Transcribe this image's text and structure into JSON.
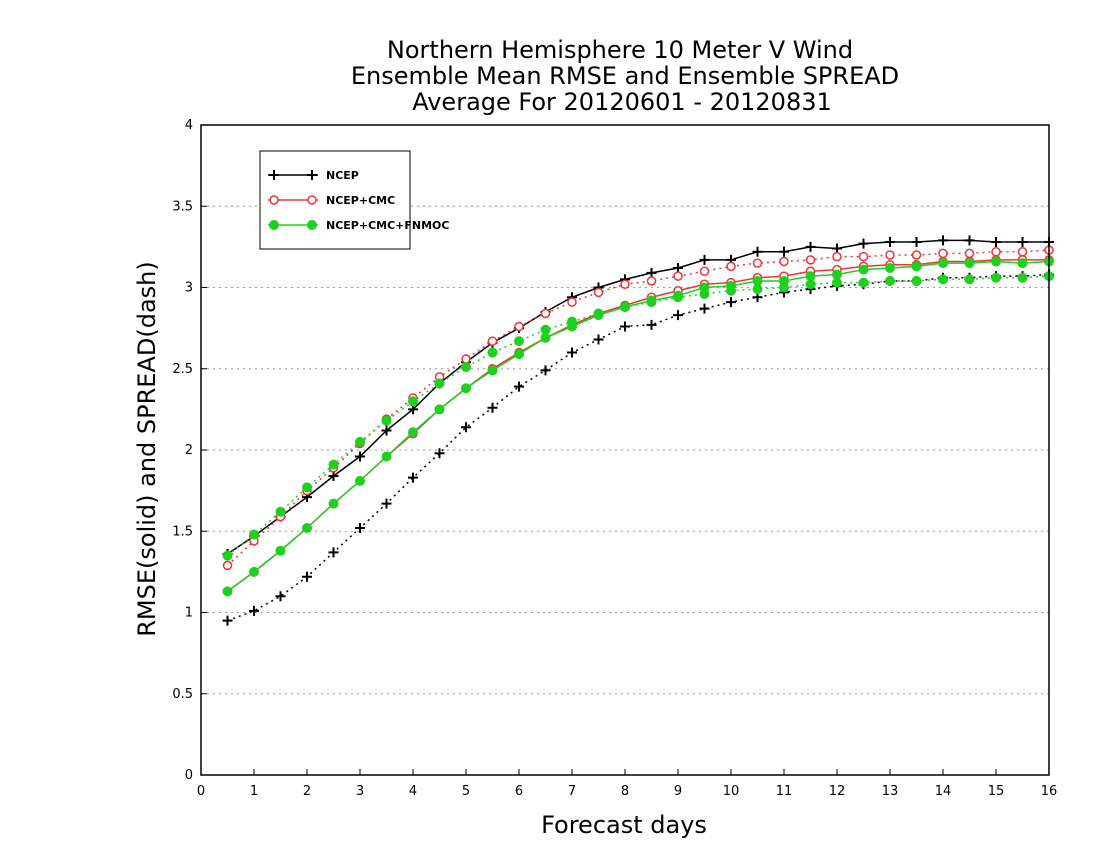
{
  "chart_data": {
    "type": "line",
    "title_lines": [
      "Northern Hemisphere 10 Meter V Wind",
      "Ensemble Mean RMSE and Ensemble SPREAD",
      "Average For 20120601 - 20120831"
    ],
    "xlabel": "Forecast days",
    "ylabel": "RMSE(solid) and SPREAD(dash)",
    "xlim": [
      0,
      16
    ],
    "ylim": [
      0,
      4
    ],
    "xticks": [
      "0",
      "1",
      "2",
      "3",
      "4",
      "5",
      "6",
      "7",
      "8",
      "9",
      "10",
      "11",
      "12",
      "13",
      "14",
      "15",
      "16"
    ],
    "yticks": [
      "0",
      "0.5",
      "1",
      "1.5",
      "2",
      "2.5",
      "3",
      "3.5",
      "4"
    ],
    "grid": "horizontal dotted",
    "legend_position": "top-left",
    "x": [
      0.5,
      1,
      1.5,
      2,
      2.5,
      3,
      3.5,
      4,
      4.5,
      5,
      5.5,
      6,
      6.5,
      7,
      7.5,
      8,
      8.5,
      9,
      9.5,
      10,
      10.5,
      11,
      11.5,
      12,
      12.5,
      13,
      13.5,
      14,
      14.5,
      15,
      15.5,
      16
    ],
    "series": [
      {
        "name": "NCEP",
        "color": "#000000",
        "marker": "plus",
        "rmse": [
          1.36,
          1.47,
          1.59,
          1.71,
          1.84,
          1.96,
          2.12,
          2.25,
          2.41,
          2.54,
          2.66,
          2.75,
          2.85,
          2.94,
          3.0,
          3.05,
          3.09,
          3.12,
          3.17,
          3.17,
          3.22,
          3.22,
          3.25,
          3.24,
          3.27,
          3.28,
          3.28,
          3.29,
          3.29,
          3.28,
          3.28,
          3.28
        ],
        "spread": [
          0.95,
          1.01,
          1.1,
          1.22,
          1.37,
          1.52,
          1.67,
          1.83,
          1.98,
          2.14,
          2.26,
          2.39,
          2.49,
          2.6,
          2.68,
          2.76,
          2.77,
          2.83,
          2.87,
          2.91,
          2.94,
          2.97,
          2.99,
          3.01,
          3.02,
          3.04,
          3.04,
          3.06,
          3.06,
          3.07,
          3.07,
          3.08
        ]
      },
      {
        "name": "NCEP+CMC",
        "color": "#e8383a",
        "marker": "circle-open",
        "rmse": [
          1.13,
          1.25,
          1.38,
          1.52,
          1.67,
          1.81,
          1.96,
          2.1,
          2.25,
          2.38,
          2.5,
          2.6,
          2.69,
          2.77,
          2.84,
          2.89,
          2.94,
          2.98,
          3.02,
          3.03,
          3.06,
          3.07,
          3.1,
          3.11,
          3.13,
          3.14,
          3.14,
          3.16,
          3.16,
          3.17,
          3.17,
          3.17
        ],
        "spread": [
          1.29,
          1.44,
          1.59,
          1.75,
          1.89,
          2.04,
          2.19,
          2.32,
          2.45,
          2.56,
          2.67,
          2.76,
          2.84,
          2.91,
          2.97,
          3.02,
          3.04,
          3.07,
          3.1,
          3.13,
          3.15,
          3.16,
          3.17,
          3.19,
          3.19,
          3.2,
          3.2,
          3.21,
          3.21,
          3.22,
          3.22,
          3.23
        ]
      },
      {
        "name": "NCEP+CMC+FNMOC",
        "color": "#1fd01f",
        "marker": "circle-filled",
        "rmse": [
          1.13,
          1.25,
          1.38,
          1.52,
          1.67,
          1.81,
          1.96,
          2.11,
          2.25,
          2.38,
          2.49,
          2.59,
          2.69,
          2.76,
          2.83,
          2.88,
          2.92,
          2.95,
          3.0,
          3.01,
          3.04,
          3.04,
          3.07,
          3.08,
          3.11,
          3.12,
          3.13,
          3.15,
          3.15,
          3.16,
          3.15,
          3.16
        ],
        "spread": [
          1.35,
          1.48,
          1.62,
          1.77,
          1.91,
          2.05,
          2.18,
          2.3,
          2.41,
          2.51,
          2.6,
          2.67,
          2.74,
          2.79,
          2.84,
          2.88,
          2.91,
          2.94,
          2.96,
          2.98,
          2.99,
          3.0,
          3.02,
          3.03,
          3.03,
          3.04,
          3.04,
          3.05,
          3.05,
          3.06,
          3.06,
          3.07
        ]
      }
    ]
  }
}
